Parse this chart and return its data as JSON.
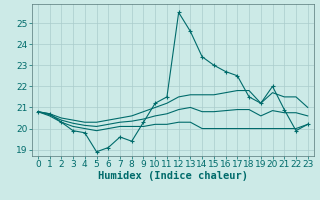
{
  "title": "",
  "xlabel": "Humidex (Indice chaleur)",
  "ylabel": "",
  "background_color": "#cceae7",
  "line_color": "#006b6b",
  "grid_color": "#aacccc",
  "x": [
    0,
    1,
    2,
    3,
    4,
    5,
    6,
    7,
    8,
    9,
    10,
    11,
    12,
    13,
    14,
    15,
    16,
    17,
    18,
    19,
    20,
    21,
    22,
    23
  ],
  "y_main": [
    20.8,
    20.7,
    20.3,
    19.9,
    19.8,
    18.9,
    19.1,
    19.6,
    19.4,
    20.3,
    21.2,
    21.5,
    25.5,
    24.6,
    23.4,
    23.0,
    22.7,
    22.5,
    21.5,
    21.2,
    22.0,
    20.9,
    19.9,
    20.2
  ],
  "y_upper": [
    20.8,
    20.7,
    20.5,
    20.4,
    20.3,
    20.3,
    20.4,
    20.5,
    20.6,
    20.8,
    21.0,
    21.2,
    21.5,
    21.6,
    21.6,
    21.6,
    21.7,
    21.8,
    21.8,
    21.2,
    21.7,
    21.5,
    21.5,
    21.0
  ],
  "y_lower": [
    20.8,
    20.6,
    20.3,
    20.1,
    20.0,
    19.9,
    20.0,
    20.1,
    20.1,
    20.1,
    20.2,
    20.2,
    20.3,
    20.3,
    20.0,
    20.0,
    20.0,
    20.0,
    20.0,
    20.0,
    20.0,
    20.0,
    20.0,
    20.2
  ],
  "y_trend": [
    20.8,
    20.65,
    20.4,
    20.25,
    20.15,
    20.1,
    20.2,
    20.3,
    20.35,
    20.45,
    20.6,
    20.7,
    20.9,
    21.0,
    20.8,
    20.8,
    20.85,
    20.9,
    20.9,
    20.6,
    20.85,
    20.75,
    20.75,
    20.6
  ],
  "ylim": [
    18.7,
    25.9
  ],
  "xlim": [
    -0.5,
    23.5
  ],
  "yticks": [
    19,
    20,
    21,
    22,
    23,
    24,
    25
  ],
  "xticks": [
    0,
    1,
    2,
    3,
    4,
    5,
    6,
    7,
    8,
    9,
    10,
    11,
    12,
    13,
    14,
    15,
    16,
    17,
    18,
    19,
    20,
    21,
    22,
    23
  ],
  "xlabel_fontsize": 7.5,
  "tick_fontsize": 6.5
}
